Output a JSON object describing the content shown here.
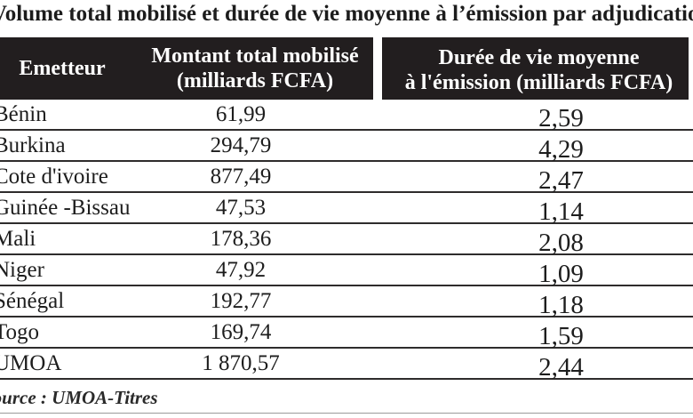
{
  "title": "Volume total mobilisé et durée de vie moyenne à l’émission par adjudication",
  "table": {
    "header": {
      "emetteur": "Emetteur",
      "montant_line1": "Montant total mobilisé",
      "montant_line2": "(milliards FCFA)",
      "duree_line1": "Durée de vie moyenne",
      "duree_line2": "à l'émission (milliards FCFA)"
    },
    "rows": [
      {
        "emetteur": "Bénin",
        "montant": "61,99",
        "duree": "2,59"
      },
      {
        "emetteur": "Burkina",
        "montant": "294,79",
        "duree": "4,29"
      },
      {
        "emetteur": "Cote d'ivoire",
        "montant": "877,49",
        "duree": "2,47"
      },
      {
        "emetteur": "Guinée -Bissau",
        "montant": "47,53",
        "duree": "1,14"
      },
      {
        "emetteur": "Mali",
        "montant": "178,36",
        "duree": "2,08"
      },
      {
        "emetteur": "Niger",
        "montant": "47,92",
        "duree": "1,09"
      },
      {
        "emetteur": "Sénégal",
        "montant": "192,77",
        "duree": "1,18"
      },
      {
        "emetteur": "Togo",
        "montant": "169,74",
        "duree": "1,59"
      },
      {
        "emetteur": "UMOA",
        "montant": "1 870,57",
        "duree": "2,44"
      }
    ]
  },
  "source": "Source : UMOA-Titres",
  "colors": {
    "header_bg": "#221e1f",
    "header_text": "#ffffff",
    "body_text": "#1d1d1d",
    "row_line": "#2e2c2c",
    "bottom_rule": "#9b9b9b"
  }
}
